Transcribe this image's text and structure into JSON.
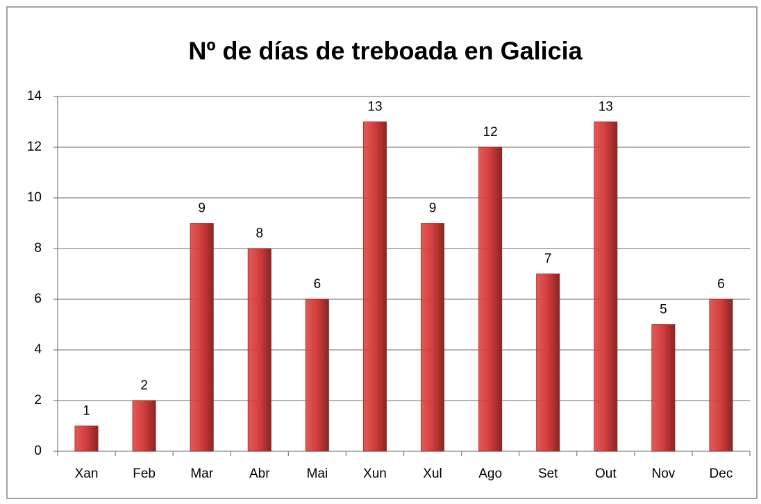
{
  "chart_data": {
    "type": "bar",
    "title": "Nº de días de treboada en Galicia",
    "categories": [
      "Xan",
      "Feb",
      "Mar",
      "Abr",
      "Mai",
      "Xun",
      "Xul",
      "Ago",
      "Set",
      "Out",
      "Nov",
      "Dec"
    ],
    "values": [
      1,
      2,
      9,
      8,
      6,
      13,
      9,
      12,
      7,
      13,
      5,
      6
    ],
    "color": "#d6403f",
    "ylim": [
      0,
      14
    ],
    "yticks": [
      0,
      2,
      4,
      6,
      8,
      10,
      12,
      14
    ],
    "grid": true
  }
}
